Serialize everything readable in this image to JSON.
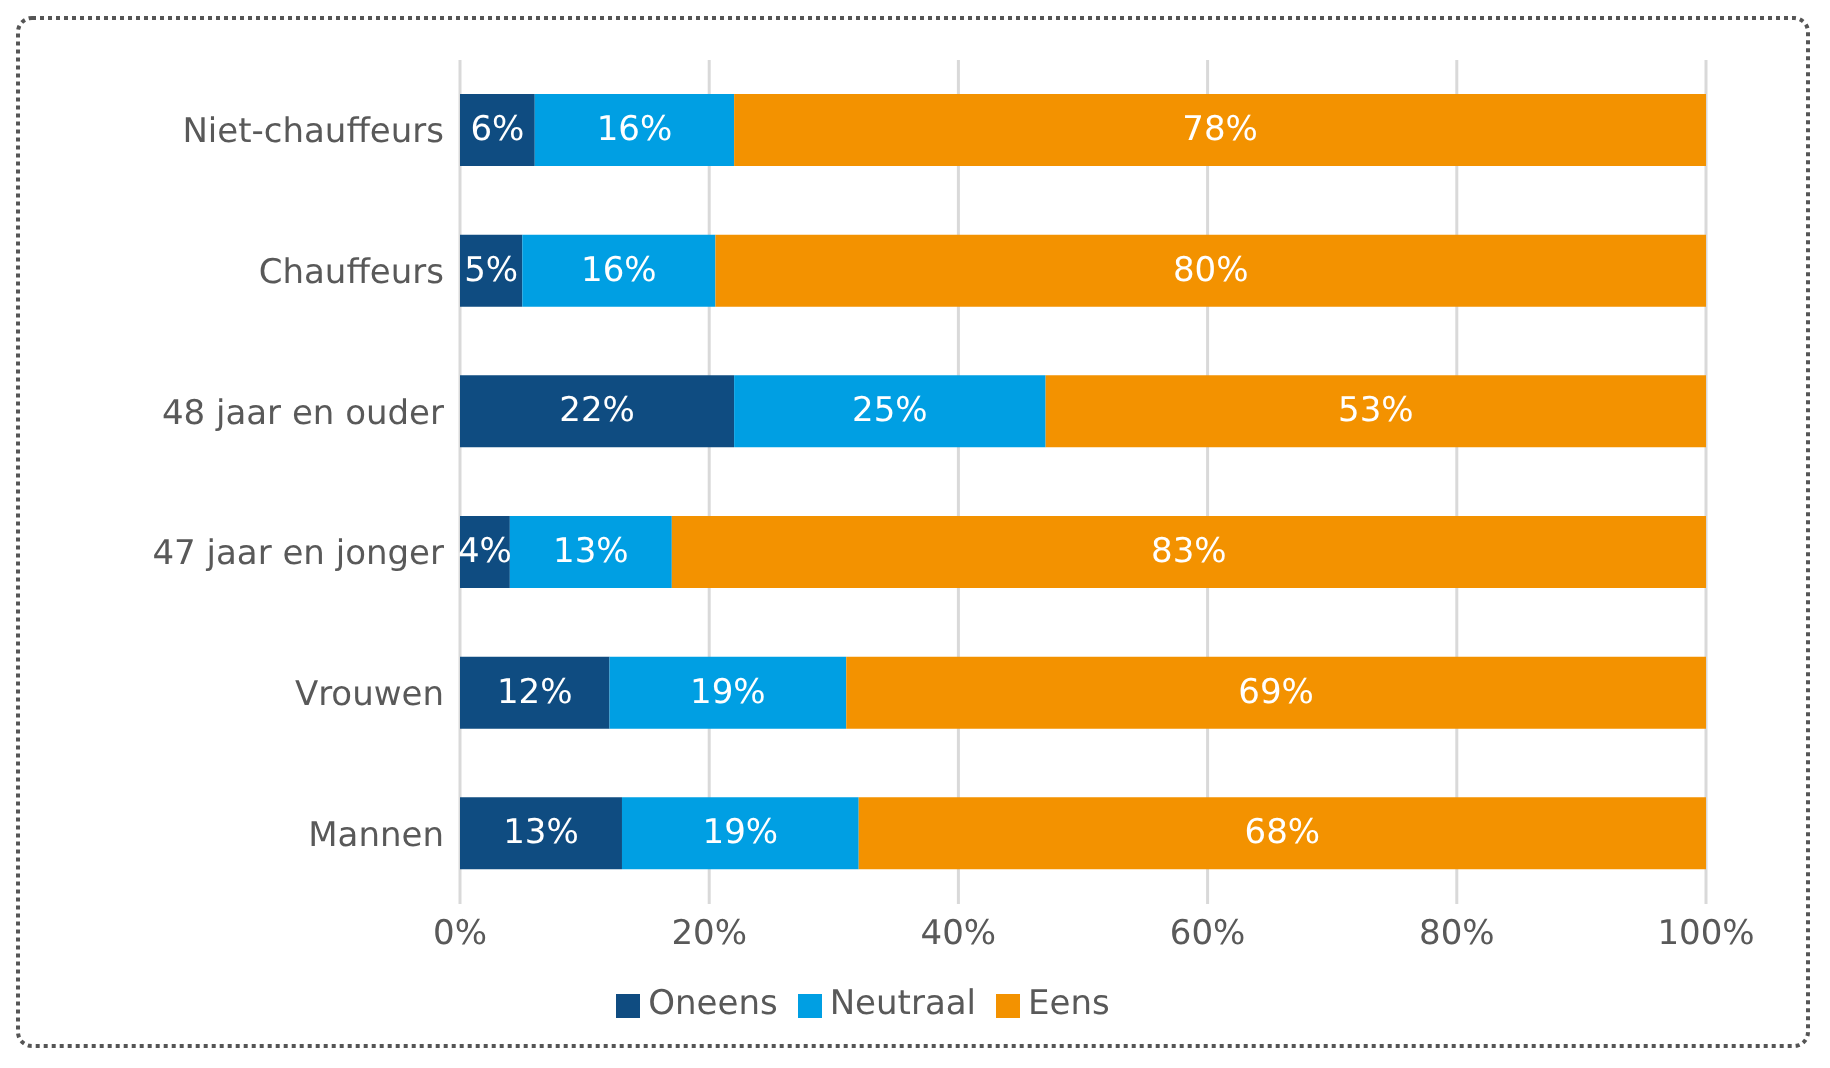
{
  "chart_data": {
    "type": "bar",
    "orientation": "horizontal",
    "stacked": true,
    "categories": [
      "Niet-chauffeurs",
      "Chauffeurs",
      "48 jaar en ouder",
      "47 jaar en jonger",
      "Vrouwen",
      "Mannen"
    ],
    "series": [
      {
        "name": "Oneens",
        "color": "#0f4c81",
        "values": [
          6,
          5,
          22,
          4,
          12,
          13
        ],
        "value_labels": [
          "6%",
          "5%",
          "22%",
          "4%",
          "12%",
          "13%"
        ]
      },
      {
        "name": "Neutraal",
        "color": "#009fe3",
        "values": [
          16,
          15.5,
          25,
          13,
          19,
          19
        ],
        "value_labels": [
          "16%",
          "16%",
          "25%",
          "13%",
          "19%",
          "19%"
        ]
      },
      {
        "name": "Eens",
        "color": "#f39200",
        "values": [
          78,
          79.5,
          53,
          83,
          69,
          68
        ],
        "value_labels": [
          "78%",
          "80%",
          "53%",
          "83%",
          "69%",
          "68%"
        ]
      }
    ],
    "xlim": [
      0,
      100
    ],
    "xticks": [
      {
        "value": 0,
        "label": "0%"
      },
      {
        "value": 20,
        "label": "20%"
      },
      {
        "value": 40,
        "label": "40%"
      },
      {
        "value": 60,
        "label": "60%"
      },
      {
        "value": 80,
        "label": "80%"
      },
      {
        "value": 100,
        "label": "100%"
      }
    ],
    "grid": "x",
    "legend": "bottom"
  }
}
